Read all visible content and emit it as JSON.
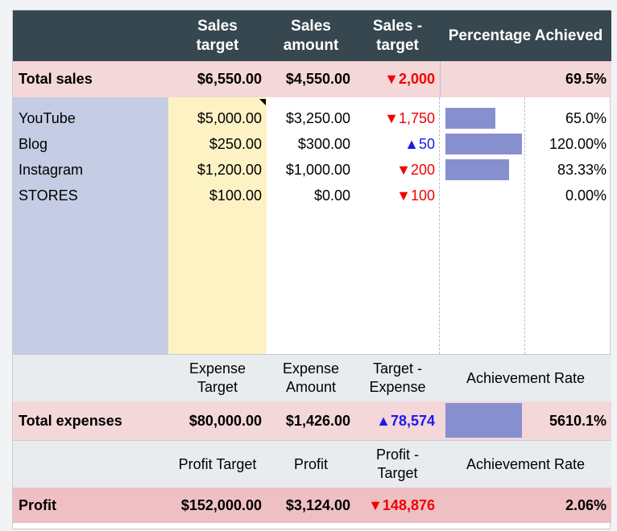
{
  "headers": {
    "sales_target": "Sales target",
    "sales_amount": "Sales amount",
    "sales_minus_target": "Sales - target",
    "percentage_achieved": "Percentage Achieved"
  },
  "total_sales": {
    "label": "Total sales",
    "target": "$6,550.00",
    "amount": "$4,550.00",
    "diff": "▼2,000",
    "pct": "69.5%"
  },
  "channels": [
    {
      "name": "YouTube",
      "target": "$5,000.00",
      "amount": "$3,250.00",
      "diff": "▼1,750",
      "direction": "down",
      "pct": "65.0%",
      "achieved": 0.65
    },
    {
      "name": "Blog",
      "target": "$250.00",
      "amount": "$300.00",
      "diff": "▲50",
      "direction": "up",
      "pct": "120.00%",
      "achieved": 1.2
    },
    {
      "name": "Instagram",
      "target": "$1,200.00",
      "amount": "$1,000.00",
      "diff": "▼200",
      "direction": "down",
      "pct": "83.33%",
      "achieved": 0.8333
    },
    {
      "name": "STORES",
      "target": "$100.00",
      "amount": "$0.00",
      "diff": "▼100",
      "direction": "down",
      "pct": "0.00%",
      "achieved": 0.0
    }
  ],
  "expense_headers": {
    "target": "Expense Target",
    "amount": "Expense Amount",
    "diff": "Target - Expense",
    "rate": "Achievement Rate"
  },
  "total_expenses": {
    "label": "Total expenses",
    "target": "$80,000.00",
    "amount": "$1,426.00",
    "diff": "▲78,574",
    "pct": "5610.1%",
    "achieved": 56.101
  },
  "profit_headers": {
    "target": "Profit Target",
    "amount": "Profit",
    "diff": "Profit - Target",
    "rate": "Achievement Rate"
  },
  "profit": {
    "label": "Profit",
    "target": "$152,000.00",
    "amount": "$3,124.00",
    "diff": "▼148,876",
    "pct": "2.06%"
  },
  "colors": {
    "header_bg": "#37474f",
    "total_row_bg": "#f4d7d9",
    "profit_row_bg": "#efc0c3",
    "side_col_bg": "#c5cde4",
    "target_col_bg": "#fdf2c4",
    "bar": "#8790cf",
    "negative": "#f00000",
    "positive": "#1a1aee"
  }
}
